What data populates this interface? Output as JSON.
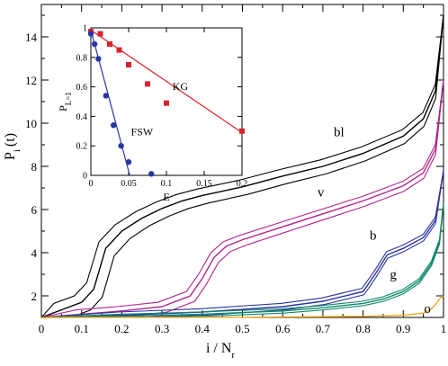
{
  "chart_data": [
    {
      "type": "line",
      "xlabel": "i / N",
      "xlabel_sub": "r",
      "ylabel": "P",
      "ylabel_sub": "i",
      "ylabel_suffix": "(t)",
      "xlim": [
        0,
        1
      ],
      "ylim": [
        1,
        15.5
      ],
      "xticks": [
        0,
        0.1,
        0.2,
        0.3,
        0.4,
        0.5,
        0.6,
        0.7,
        0.8,
        0.9,
        1
      ],
      "xtick_labels": [
        "0",
        "0.1",
        "0.2",
        "0.3",
        "0.4",
        "0.5",
        "0.6",
        "0.7",
        "0.8",
        "0.9",
        "1"
      ],
      "yticks": [
        2,
        4,
        6,
        8,
        10,
        12,
        14
      ],
      "yminor": [
        1,
        3,
        5,
        7,
        9,
        11,
        13,
        15
      ],
      "grid": false,
      "series": [
        {
          "name": "bl",
          "color": "#000000",
          "copies": [
            {
              "dx": -0.02,
              "dy": 0.3
            },
            {
              "dx": 0,
              "dy": 0
            },
            {
              "dx": 0.025,
              "dy": -0.35
            }
          ],
          "x": [
            0,
            0.05,
            0.1,
            0.13,
            0.16,
            0.2,
            0.25,
            0.3,
            0.35,
            0.4,
            0.5,
            0.6,
            0.7,
            0.8,
            0.9,
            0.95,
            0.98,
            1.0
          ],
          "y": [
            1.0,
            1.35,
            1.7,
            2.3,
            4.2,
            5.0,
            5.6,
            6.05,
            6.4,
            6.65,
            7.05,
            7.55,
            8.0,
            8.6,
            9.4,
            10.2,
            11.5,
            15.0
          ]
        },
        {
          "name": "v",
          "color": "#b0238c",
          "copies": [
            {
              "dx": -0.015,
              "dy": 0.2
            },
            {
              "dx": 0,
              "dy": 0
            },
            {
              "dx": 0.018,
              "dy": -0.25
            }
          ],
          "x": [
            0,
            0.1,
            0.2,
            0.3,
            0.37,
            0.4,
            0.43,
            0.46,
            0.5,
            0.6,
            0.7,
            0.8,
            0.9,
            0.95,
            0.98,
            1.0
          ],
          "y": [
            1.0,
            1.15,
            1.3,
            1.5,
            2.0,
            2.8,
            3.8,
            4.3,
            4.6,
            5.2,
            5.8,
            6.4,
            7.1,
            7.7,
            8.8,
            12.0
          ]
        },
        {
          "name": "b",
          "color": "#2a35a0",
          "copies": [
            {
              "dx": -0.012,
              "dy": 0.15
            },
            {
              "dx": 0,
              "dy": 0
            },
            {
              "dx": 0.012,
              "dy": -0.15
            }
          ],
          "x": [
            0,
            0.2,
            0.4,
            0.6,
            0.7,
            0.8,
            0.83,
            0.86,
            0.9,
            0.95,
            0.98,
            1.0
          ],
          "y": [
            1.0,
            1.1,
            1.25,
            1.5,
            1.75,
            2.2,
            3.0,
            3.9,
            4.2,
            4.7,
            5.5,
            7.8
          ]
        },
        {
          "name": "g",
          "color": "#0f8a6a",
          "copies": [
            {
              "dx": -0.008,
              "dy": 0.1
            },
            {
              "dx": 0,
              "dy": 0
            },
            {
              "dx": 0.008,
              "dy": -0.1
            }
          ],
          "x": [
            0,
            0.2,
            0.4,
            0.6,
            0.7,
            0.8,
            0.85,
            0.9,
            0.94,
            0.97,
            0.99,
            1.0
          ],
          "y": [
            1.0,
            1.05,
            1.15,
            1.3,
            1.45,
            1.65,
            1.85,
            2.2,
            2.7,
            3.5,
            4.5,
            6.3
          ]
        },
        {
          "name": "o",
          "color": "#f0a81a",
          "copies": [
            {
              "dx": 0,
              "dy": 0
            }
          ],
          "x": [
            0,
            0.5,
            0.8,
            0.9,
            0.95,
            0.97,
            0.98,
            0.99,
            1.0
          ],
          "y": [
            1.0,
            1.01,
            1.05,
            1.1,
            1.2,
            1.4,
            1.6,
            1.85,
            2.0
          ]
        }
      ],
      "series_labels": [
        {
          "text": "bl",
          "x": 0.74,
          "y": 9.4
        },
        {
          "text": "v",
          "x": 0.695,
          "y": 6.6
        },
        {
          "text": "b",
          "x": 0.825,
          "y": 4.6
        },
        {
          "text": "g",
          "x": 0.875,
          "y": 2.8
        },
        {
          "text": "o",
          "x": 0.96,
          "y": 1.2
        }
      ]
    },
    {
      "type": "scatter",
      "xlabel": "E",
      "ylabel": "P",
      "ylabel_sub": "L=1",
      "xlim": [
        0,
        0.2
      ],
      "ylim": [
        0,
        1
      ],
      "xticks": [
        0,
        0.05,
        0.1,
        0.15,
        0.2
      ],
      "xtick_labels": [
        "0",
        "0.05",
        "0.1",
        "0.15",
        "0.2"
      ],
      "yticks": [
        0,
        0.2,
        0.4,
        0.6,
        0.8,
        1
      ],
      "ytick_labels": [
        "0",
        "0.2",
        "0.4",
        "0.6",
        "0.8",
        "1"
      ],
      "series": [
        {
          "name": "KG",
          "color": "#d9232a",
          "marker": "square",
          "x": [
            0.0,
            0.0125,
            0.025,
            0.0375,
            0.05,
            0.075,
            0.1,
            0.2
          ],
          "y": [
            0.975,
            0.96,
            0.89,
            0.85,
            0.75,
            0.62,
            0.49,
            0.3
          ],
          "fit": {
            "x": [
              0,
              0.2
            ],
            "y": [
              0.985,
              0.29
            ]
          }
        },
        {
          "name": "FSW",
          "color": "#2a35a0",
          "marker": "circle",
          "x": [
            0.0,
            0.005,
            0.01,
            0.02,
            0.03,
            0.04,
            0.05,
            0.08
          ],
          "y": [
            0.96,
            0.89,
            0.79,
            0.54,
            0.34,
            0.2,
            0.09,
            0.01
          ],
          "fit": {
            "x": [
              0,
              0.0515
            ],
            "y": [
              0.985,
              0
            ]
          }
        }
      ],
      "annotations": [
        {
          "text": "KG",
          "x": 0.108,
          "y": 0.58
        },
        {
          "text": "FSW",
          "x": 0.053,
          "y": 0.27
        }
      ]
    }
  ]
}
